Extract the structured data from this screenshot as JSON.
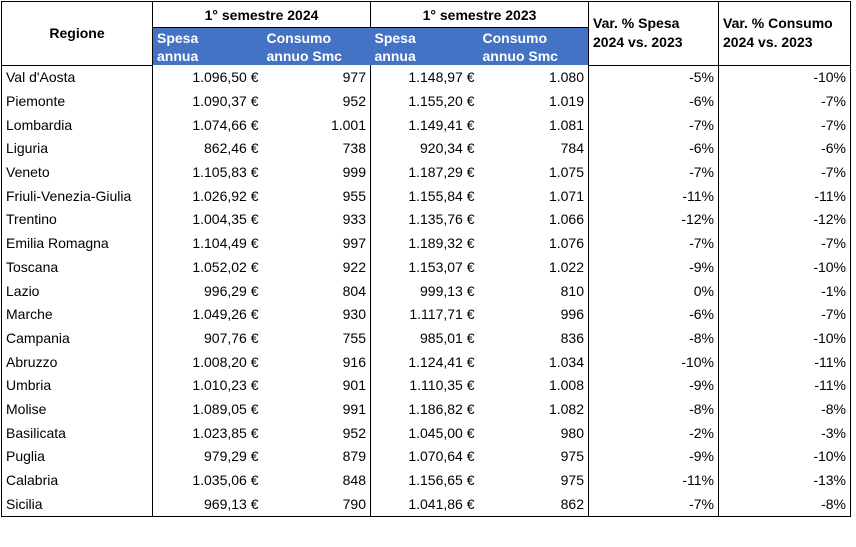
{
  "header": {
    "region": "Regione",
    "groups": [
      "1° semestre 2024",
      "1° semestre 2023"
    ],
    "subheaders": [
      [
        "Spesa",
        "annua"
      ],
      [
        "Consumo",
        "annuo Smc"
      ],
      [
        "Spesa",
        "annua"
      ],
      [
        "Consumo",
        "annuo Smc"
      ]
    ],
    "var_spesa": [
      "Var. % Spesa",
      "2024 vs. 2023"
    ],
    "var_consumo": [
      "Var. % Consumo",
      "2024 vs. 2023"
    ]
  },
  "table": {
    "rows": [
      [
        "Val d'Aosta",
        "1.096,50 €",
        "977",
        "1.148,97 €",
        "1.080",
        "-5%",
        "-10%"
      ],
      [
        "Piemonte",
        "1.090,37 €",
        "952",
        "1.155,20 €",
        "1.019",
        "-6%",
        "-7%"
      ],
      [
        "Lombardia",
        "1.074,66 €",
        "1.001",
        "1.149,41 €",
        "1.081",
        "-7%",
        "-7%"
      ],
      [
        "Liguria",
        "862,46 €",
        "738",
        "920,34 €",
        "784",
        "-6%",
        "-6%"
      ],
      [
        "Veneto",
        "1.105,83 €",
        "999",
        "1.187,29 €",
        "1.075",
        "-7%",
        "-7%"
      ],
      [
        "Friuli-Venezia-Giulia",
        "1.026,92 €",
        "955",
        "1.155,84 €",
        "1.071",
        "-11%",
        "-11%"
      ],
      [
        "Trentino",
        "1.004,35 €",
        "933",
        "1.135,76 €",
        "1.066",
        "-12%",
        "-12%"
      ],
      [
        "Emilia Romagna",
        "1.104,49 €",
        "997",
        "1.189,32 €",
        "1.076",
        "-7%",
        "-7%"
      ],
      [
        "Toscana",
        "1.052,02 €",
        "922",
        "1.153,07 €",
        "1.022",
        "-9%",
        "-10%"
      ],
      [
        "Lazio",
        "996,29 €",
        "804",
        "999,13 €",
        "810",
        "0%",
        "-1%"
      ],
      [
        "Marche",
        "1.049,26 €",
        "930",
        "1.117,71 €",
        "996",
        "-6%",
        "-7%"
      ],
      [
        "Campania",
        "907,76 €",
        "755",
        "985,01 €",
        "836",
        "-8%",
        "-10%"
      ],
      [
        "Abruzzo",
        "1.008,20 €",
        "916",
        "1.124,41 €",
        "1.034",
        "-10%",
        "-11%"
      ],
      [
        "Umbria",
        "1.010,23 €",
        "901",
        "1.110,35 €",
        "1.008",
        "-9%",
        "-11%"
      ],
      [
        "Molise",
        "1.089,05 €",
        "991",
        "1.186,82 €",
        "1.082",
        "-8%",
        "-8%"
      ],
      [
        "Basilicata",
        "1.023,85 €",
        "952",
        "1.045,00 €",
        "980",
        "-2%",
        "-3%"
      ],
      [
        "Puglia",
        "979,29 €",
        "879",
        "1.070,64 €",
        "975",
        "-9%",
        "-10%"
      ],
      [
        "Calabria",
        "1.035,06 €",
        "848",
        "1.156,65 €",
        "975",
        "-11%",
        "-13%"
      ],
      [
        "Sicilia",
        "969,13 €",
        "790",
        "1.041,86 €",
        "862",
        "-7%",
        "-8%"
      ]
    ]
  }
}
